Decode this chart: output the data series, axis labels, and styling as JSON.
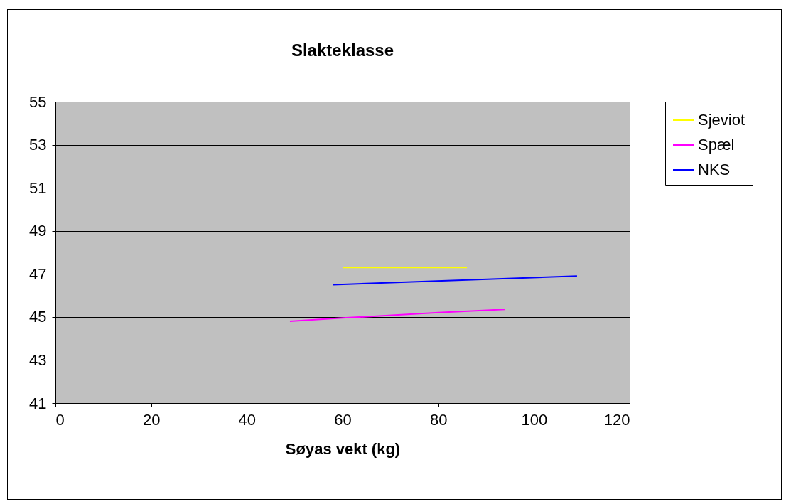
{
  "chart_data": {
    "type": "line",
    "title": "Slakteklasse",
    "xlabel": "Søyas vekt (kg)",
    "xlim": [
      0,
      120
    ],
    "xticks": [
      0,
      20,
      40,
      60,
      80,
      100,
      120
    ],
    "ylim": [
      41,
      55
    ],
    "yticks": [
      41,
      43,
      45,
      47,
      49,
      51,
      53,
      55
    ],
    "grid": "y",
    "legend": "right",
    "marker": "none",
    "series": [
      {
        "name": "Sjeviot",
        "color": "#ffff00",
        "x": [
          60,
          86
        ],
        "values": [
          47.3,
          47.3
        ]
      },
      {
        "name": "Spæl",
        "color": "#ff00ff",
        "x": [
          49,
          60,
          80,
          94
        ],
        "values": [
          44.8,
          44.95,
          45.2,
          45.35
        ]
      },
      {
        "name": "NKS",
        "color": "#0000ff",
        "x": [
          58,
          109
        ],
        "values": [
          46.5,
          46.9
        ]
      }
    ]
  }
}
